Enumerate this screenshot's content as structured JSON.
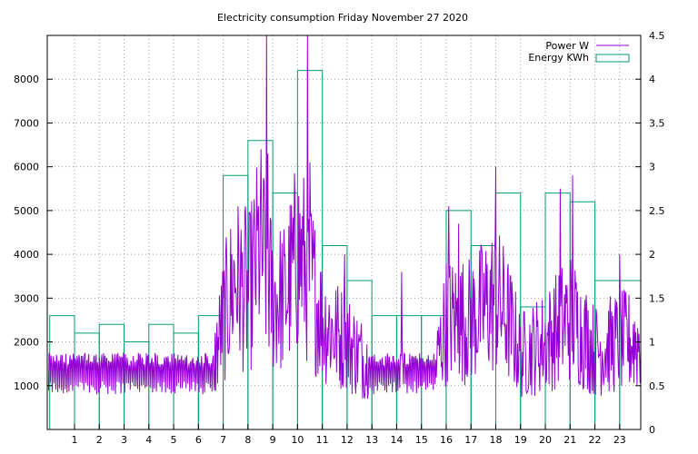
{
  "chart_data": {
    "type": "line",
    "title": "Electricity consumption Friday November 27 2020",
    "x_ticks": [
      1,
      2,
      3,
      4,
      5,
      6,
      7,
      8,
      9,
      10,
      11,
      12,
      13,
      14,
      15,
      16,
      17,
      18,
      19,
      20,
      21,
      22,
      23
    ],
    "xlim": [
      -0.1,
      23.85
    ],
    "y_left": {
      "lim": [
        0,
        9000
      ],
      "ticks": [
        1000,
        2000,
        3000,
        4000,
        5000,
        6000,
        7000,
        8000
      ]
    },
    "y_right": {
      "lim": [
        0,
        4.5
      ],
      "ticks": [
        "0",
        "0.5",
        "1",
        "1.5",
        "2",
        "2.5",
        "3",
        "3.5",
        "4",
        "4.5"
      ]
    },
    "grid": true,
    "legend_position": "top-right",
    "colors": {
      "power": "#9400d3",
      "energy": "#009e73"
    },
    "series": [
      {
        "name": "Power W",
        "style": "line",
        "axis": "left",
        "profile": [
          {
            "x": 0.0,
            "y": 1250
          },
          {
            "x": 1.0,
            "y": 1250
          },
          {
            "x": 2.0,
            "y": 1300
          },
          {
            "x": 3.0,
            "y": 1150
          },
          {
            "x": 4.0,
            "y": 1250
          },
          {
            "x": 5.0,
            "y": 1250
          },
          {
            "x": 6.0,
            "y": 1250
          },
          {
            "x": 6.6,
            "y": 1400
          },
          {
            "x": 7.0,
            "y": 2500
          },
          {
            "x": 7.5,
            "y": 3500
          },
          {
            "x": 8.0,
            "y": 3000
          },
          {
            "x": 8.5,
            "y": 4200
          },
          {
            "x": 9.0,
            "y": 3000
          },
          {
            "x": 9.5,
            "y": 3000
          },
          {
            "x": 10.0,
            "y": 4000
          },
          {
            "x": 10.5,
            "y": 3500
          },
          {
            "x": 11.0,
            "y": 2500
          },
          {
            "x": 11.5,
            "y": 2200
          },
          {
            "x": 12.0,
            "y": 2000
          },
          {
            "x": 13.0,
            "y": 1400
          },
          {
            "x": 14.0,
            "y": 1350
          },
          {
            "x": 15.0,
            "y": 1350
          },
          {
            "x": 15.6,
            "y": 1500
          },
          {
            "x": 16.0,
            "y": 2500
          },
          {
            "x": 17.0,
            "y": 2500
          },
          {
            "x": 18.0,
            "y": 3000
          },
          {
            "x": 18.5,
            "y": 2500
          },
          {
            "x": 19.0,
            "y": 1700
          },
          {
            "x": 20.0,
            "y": 2000
          },
          {
            "x": 21.0,
            "y": 2600
          },
          {
            "x": 21.5,
            "y": 2200
          },
          {
            "x": 22.0,
            "y": 1800
          },
          {
            "x": 23.0,
            "y": 2000
          },
          {
            "x": 23.85,
            "y": 2000
          }
        ],
        "spikes": [
          {
            "x": 7.6,
            "y": 5100
          },
          {
            "x": 7.9,
            "y": 5100
          },
          {
            "x": 8.8,
            "y": 6300
          },
          {
            "x": 8.75,
            "y": 9000
          },
          {
            "x": 9.9,
            "y": 5200
          },
          {
            "x": 10.4,
            "y": 9000
          },
          {
            "x": 10.5,
            "y": 6100
          },
          {
            "x": 11.9,
            "y": 4000
          },
          {
            "x": 14.2,
            "y": 3600
          },
          {
            "x": 16.1,
            "y": 5100
          },
          {
            "x": 16.5,
            "y": 4700
          },
          {
            "x": 18.0,
            "y": 6000
          },
          {
            "x": 20.6,
            "y": 5500
          },
          {
            "x": 21.1,
            "y": 5800
          },
          {
            "x": 23.0,
            "y": 4000
          }
        ]
      },
      {
        "name": "Energy KWh",
        "style": "steps",
        "axis": "right",
        "x": [
          0,
          1,
          2,
          3,
          4,
          5,
          6,
          7,
          8,
          9,
          10,
          11,
          12,
          13,
          14,
          15,
          16,
          17,
          18,
          19,
          20,
          21,
          22,
          23
        ],
        "values": [
          1.3,
          1.1,
          1.2,
          1.0,
          1.2,
          1.1,
          1.3,
          2.9,
          3.3,
          2.7,
          4.1,
          2.1,
          1.7,
          1.3,
          1.3,
          1.3,
          2.5,
          2.1,
          2.7,
          1.4,
          2.7,
          2.6,
          1.7,
          1.7
        ]
      }
    ]
  }
}
